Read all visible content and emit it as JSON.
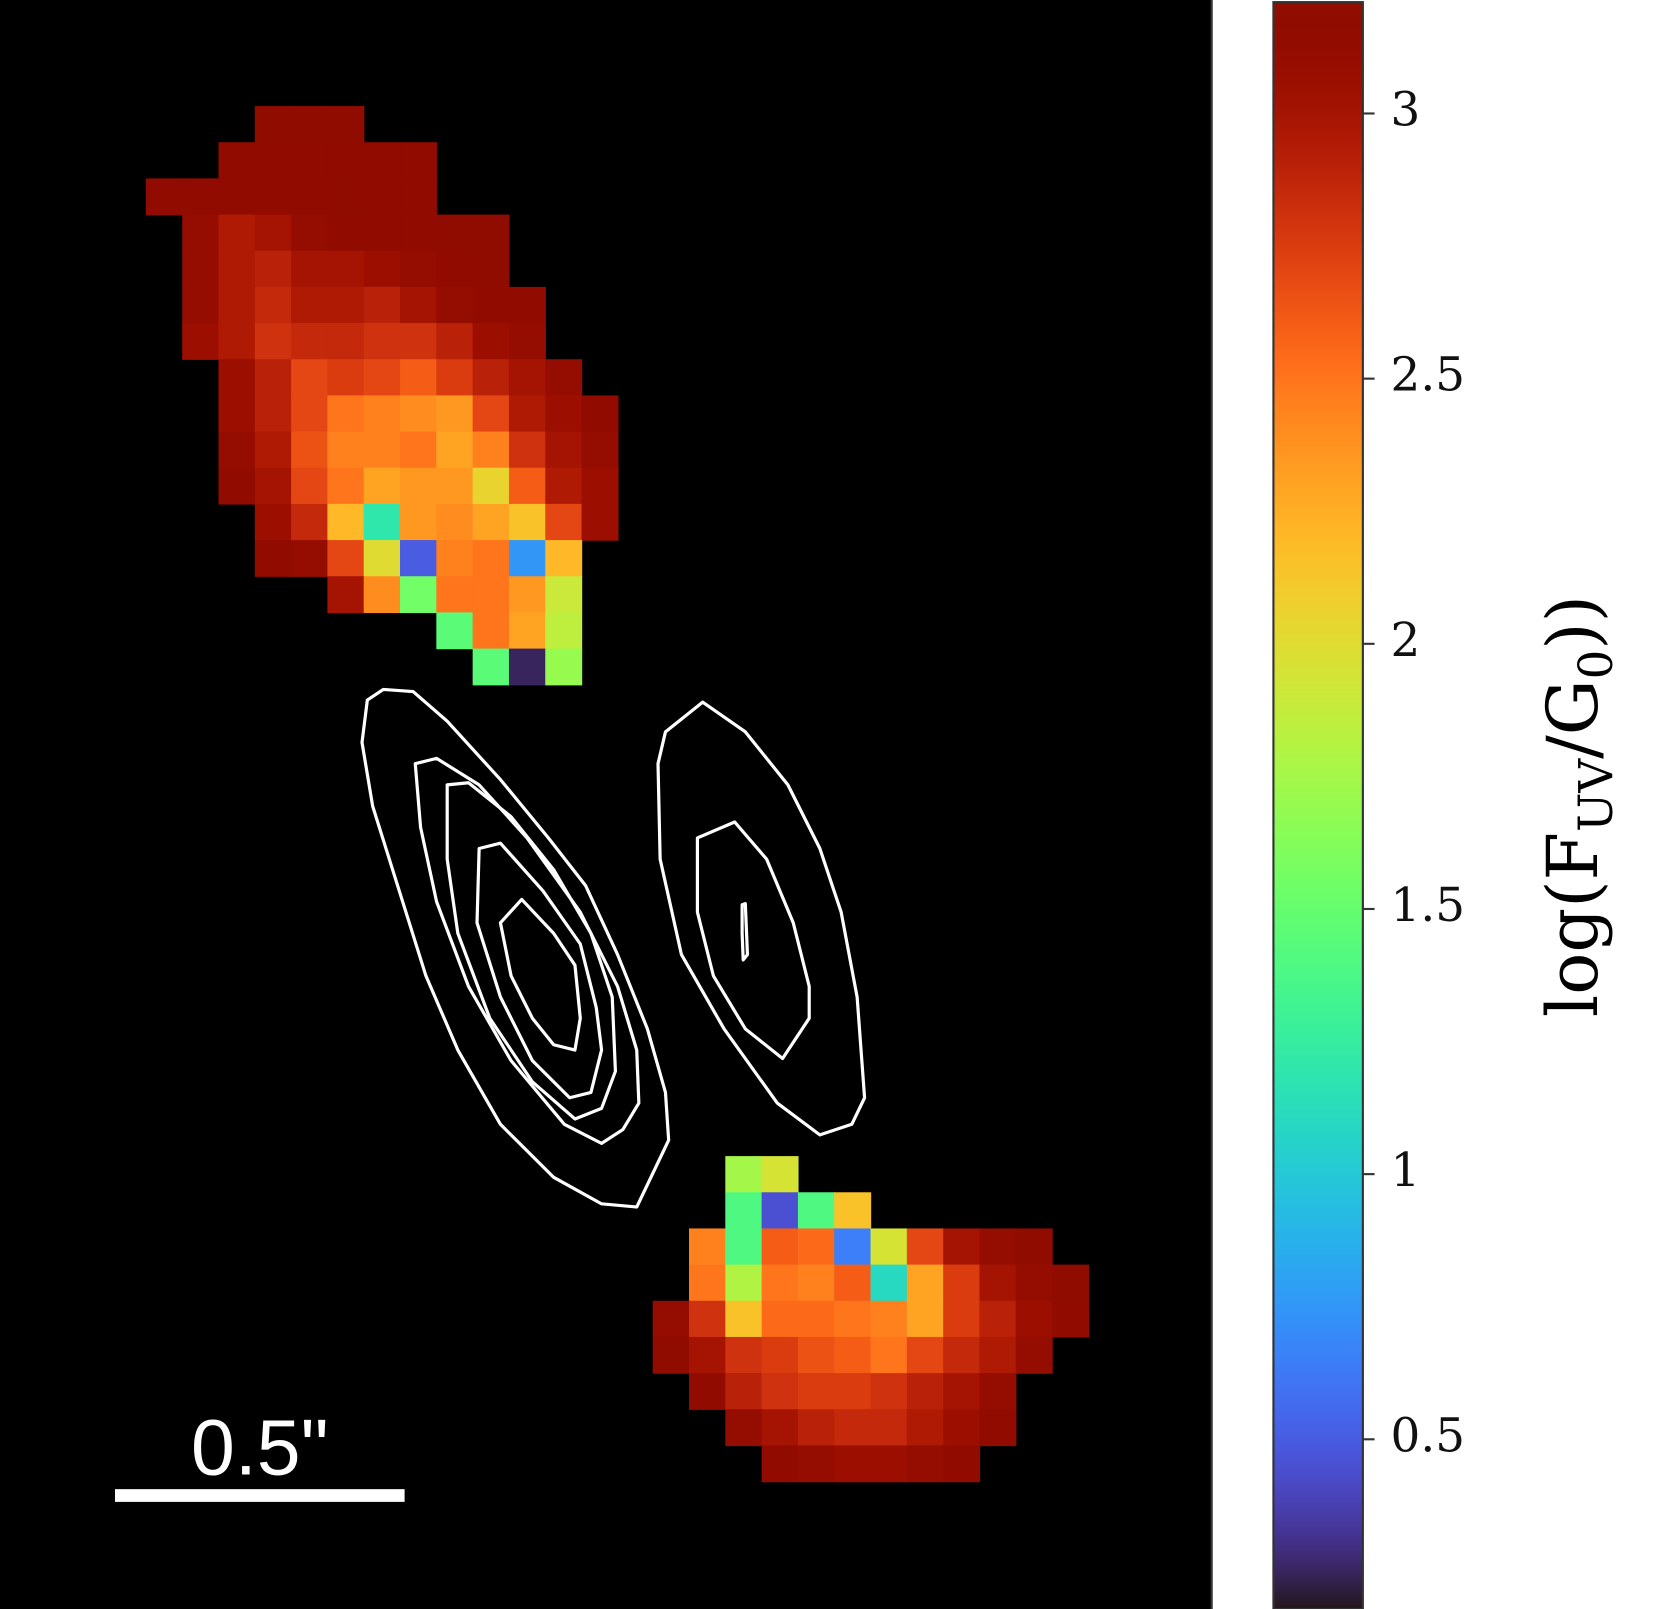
{
  "chart_data": {
    "type": "heatmap",
    "colormap": "turbo",
    "heatmaps": [
      {
        "z": [
          [
            null,
            null,
            null,
            3.2,
            3.2,
            3.2,
            null,
            null,
            null,
            null,
            null,
            null,
            null
          ],
          [
            null,
            null,
            3.15,
            3.15,
            3.15,
            3.15,
            3.15,
            3.15,
            null,
            null,
            null,
            null,
            null
          ],
          [
            3.15,
            3.15,
            3.15,
            3.15,
            3.15,
            3.2,
            3.15,
            3.15,
            null,
            null,
            null,
            null,
            null
          ],
          [
            null,
            3.1,
            2.95,
            3.0,
            3.1,
            3.15,
            3.15,
            3.15,
            3.2,
            3.2,
            null,
            null,
            null
          ],
          [
            null,
            3.1,
            2.95,
            2.9,
            3.0,
            3.0,
            3.05,
            3.1,
            3.15,
            3.2,
            null,
            null,
            null
          ],
          [
            null,
            3.1,
            2.95,
            2.85,
            2.95,
            2.95,
            2.9,
            3.0,
            3.1,
            3.15,
            3.15,
            null,
            null
          ],
          [
            null,
            3.05,
            2.95,
            2.8,
            2.85,
            2.85,
            2.8,
            2.8,
            2.9,
            3.05,
            3.1,
            null,
            null
          ],
          [
            null,
            null,
            3.05,
            2.9,
            2.7,
            2.75,
            2.7,
            2.6,
            2.75,
            2.9,
            3.0,
            3.1,
            null
          ],
          [
            null,
            null,
            3.05,
            2.9,
            2.7,
            2.5,
            2.45,
            2.4,
            2.35,
            2.7,
            2.95,
            3.05,
            3.15
          ],
          [
            null,
            null,
            3.1,
            2.95,
            2.65,
            2.45,
            2.45,
            2.5,
            2.3,
            2.45,
            2.8,
            3.0,
            3.1
          ],
          [
            null,
            null,
            3.15,
            3.0,
            2.7,
            2.5,
            2.3,
            2.35,
            2.35,
            2.05,
            2.6,
            2.95,
            3.05
          ],
          [
            null,
            null,
            null,
            3.05,
            2.85,
            2.2,
            1.2,
            2.35,
            2.4,
            2.3,
            2.15,
            2.7,
            3.05
          ],
          [
            null,
            null,
            null,
            3.15,
            3.1,
            2.7,
            2.0,
            0.5,
            2.45,
            2.5,
            0.75,
            2.2,
            null
          ],
          [
            null,
            null,
            null,
            null,
            null,
            3.0,
            2.4,
            1.55,
            2.5,
            2.5,
            2.35,
            1.9,
            null
          ],
          [
            null,
            null,
            null,
            null,
            null,
            null,
            null,
            null,
            1.45,
            2.5,
            2.3,
            1.85,
            null
          ],
          [
            null,
            null,
            null,
            null,
            null,
            null,
            null,
            null,
            null,
            1.45,
            0.25,
            1.7,
            null
          ]
        ]
      },
      {
        "z": [
          [
            null,
            null,
            1.75,
            1.95,
            null,
            null,
            null,
            null,
            null,
            null,
            null,
            null
          ],
          [
            null,
            null,
            1.4,
            0.45,
            1.4,
            2.15,
            null,
            null,
            null,
            null,
            null,
            null
          ],
          [
            null,
            2.45,
            1.4,
            2.6,
            2.55,
            0.65,
            1.95,
            2.7,
            3.0,
            3.1,
            3.2,
            null
          ],
          [
            null,
            2.5,
            1.8,
            2.5,
            2.45,
            2.6,
            1.1,
            2.3,
            2.75,
            3.0,
            3.1,
            3.2
          ],
          [
            3.1,
            2.8,
            2.15,
            2.55,
            2.55,
            2.5,
            2.45,
            2.3,
            2.75,
            2.9,
            3.05,
            3.15
          ],
          [
            3.2,
            3.0,
            2.8,
            2.75,
            2.65,
            2.6,
            2.5,
            2.7,
            2.85,
            2.95,
            3.1,
            null
          ],
          [
            null,
            3.15,
            2.9,
            2.8,
            2.75,
            2.75,
            2.8,
            2.9,
            3.0,
            3.1,
            null,
            null
          ],
          [
            null,
            null,
            3.1,
            3.0,
            2.9,
            2.85,
            2.85,
            2.95,
            3.05,
            3.15,
            null,
            null
          ],
          [
            null,
            null,
            null,
            3.15,
            3.1,
            3.05,
            3.05,
            3.1,
            3.15,
            null,
            null,
            null
          ]
        ]
      }
    ],
    "scale_bar_label": "0.5\"",
    "colorbar": {
      "clim": [
        0.18,
        3.21
      ],
      "ticks": [
        0.5,
        1,
        1.5,
        2,
        2.5,
        3
      ],
      "label": [
        {
          "text": "log(F",
          "sub": false
        },
        {
          "text": "UV",
          "sub": true
        },
        {
          "text": "/G",
          "sub": false
        },
        {
          "text": "0",
          "sub": true
        },
        {
          "text": "))",
          "sub": false
        }
      ]
    }
  }
}
